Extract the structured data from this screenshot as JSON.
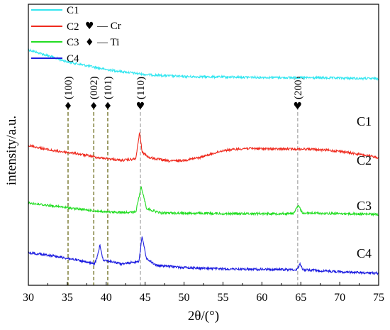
{
  "chart_data": {
    "type": "line",
    "xlabel": "2θ/(°)",
    "ylabel": "intensity/a.u.",
    "xlim": [
      30,
      75
    ],
    "x_ticks": [
      "30",
      "35",
      "40",
      "45",
      "50",
      "55",
      "60",
      "65",
      "70",
      "75"
    ],
    "legend_placement": "top-left",
    "grid": false,
    "series": [
      {
        "name": "C1",
        "color": "#33e6f0",
        "curve_label": "C1",
        "points": [
          [
            30,
            100
          ],
          [
            35,
            83
          ],
          [
            40,
            72
          ],
          [
            45,
            65
          ],
          [
            50,
            62
          ],
          [
            55,
            61.5
          ],
          [
            60,
            61
          ],
          [
            65,
            60.5
          ],
          [
            70,
            60
          ],
          [
            75,
            59
          ]
        ]
      },
      {
        "name": "C2",
        "color": "#ef2a1e",
        "curve_label": "C2",
        "points": [
          [
            30,
            31
          ],
          [
            33,
            24
          ],
          [
            36,
            20
          ],
          [
            39,
            14
          ],
          [
            42,
            10
          ],
          [
            43.8,
            12
          ],
          [
            44.3,
            50
          ],
          [
            44.6,
            22
          ],
          [
            45.5,
            14
          ],
          [
            48,
            9
          ],
          [
            50,
            10
          ],
          [
            52,
            14
          ],
          [
            55,
            24
          ],
          [
            58,
            27
          ],
          [
            62,
            26
          ],
          [
            66,
            26
          ],
          [
            70,
            23
          ],
          [
            75,
            14
          ]
        ]
      },
      {
        "name": "C3",
        "color": "#22dd22",
        "curve_label": "C3",
        "points": [
          [
            30,
            14
          ],
          [
            33,
            10
          ],
          [
            36,
            6
          ],
          [
            40,
            1
          ],
          [
            43.8,
            1
          ],
          [
            44.5,
            37
          ],
          [
            45.2,
            6
          ],
          [
            47,
            0
          ],
          [
            55,
            -1
          ],
          [
            64,
            -1
          ],
          [
            64.7,
            10
          ],
          [
            65.2,
            0
          ],
          [
            70,
            -1
          ],
          [
            75,
            -2
          ]
        ]
      },
      {
        "name": "C4",
        "color": "#1c1ce0",
        "curve_label": "C4",
        "points": [
          [
            30,
            12
          ],
          [
            33,
            8
          ],
          [
            36,
            2
          ],
          [
            38.5,
            -4
          ],
          [
            38.9,
            8
          ],
          [
            39.2,
            23
          ],
          [
            39.6,
            2
          ],
          [
            42,
            -4
          ],
          [
            44.2,
            0
          ],
          [
            44.6,
            34
          ],
          [
            45.2,
            3
          ],
          [
            46.5,
            -6
          ],
          [
            50,
            -9
          ],
          [
            55,
            -11
          ],
          [
            64.5,
            -12
          ],
          [
            64.9,
            -4
          ],
          [
            65.3,
            -12
          ],
          [
            70,
            -15
          ],
          [
            75,
            -17
          ]
        ]
      }
    ],
    "legend": [
      "C1",
      "C2",
      "C3",
      "C4"
    ],
    "symbol_key": [
      {
        "symbol": "♥",
        "label": "— Cr"
      },
      {
        "symbol": "♦",
        "label": "— Ti"
      }
    ],
    "peak_markers": [
      {
        "x": 35.1,
        "label": "(100)",
        "symbol": "♦",
        "color": "#6b6b1a"
      },
      {
        "x": 38.4,
        "label": "(002)",
        "symbol": "♦",
        "color": "#6b6b1a"
      },
      {
        "x": 40.2,
        "label": "(101)",
        "symbol": "♦",
        "color": "#6b6b1a"
      },
      {
        "x": 44.4,
        "label": "(110)",
        "symbol": "♥",
        "color": "#aaaaaa"
      },
      {
        "x": 64.6,
        "label": "(200)",
        "symbol": "♥",
        "color": "#aaaaaa"
      }
    ]
  }
}
